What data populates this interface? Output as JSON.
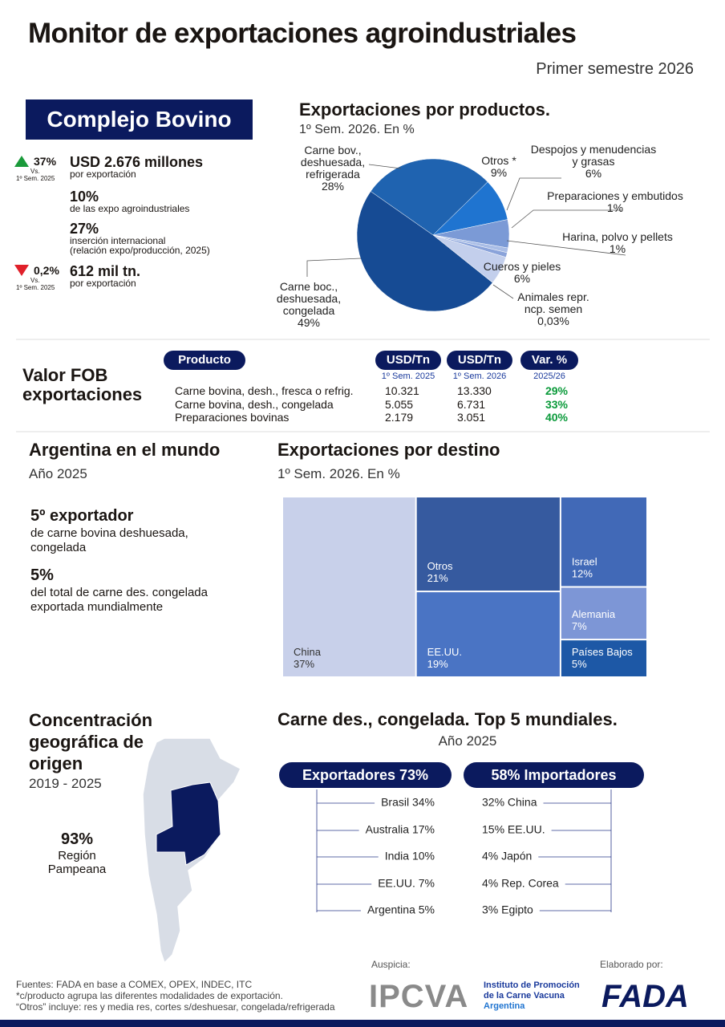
{
  "header": {
    "title": "Monitor de exportaciones agroindustriales",
    "subtitle": "Primer semestre 2026"
  },
  "complejo": {
    "title": "Complejo Bovino",
    "stats": [
      {
        "change": "37%",
        "direction": "up",
        "vs": "Vs.",
        "period": "1º Sem. 2025",
        "value": "USD 2.676 millones",
        "desc": "por exportación"
      },
      {
        "value": "10%",
        "desc": "de las expo agroindustriales"
      },
      {
        "value": "27%",
        "desc": "inserción internacional",
        "desc2": "(relación expo/producción, 2025)"
      },
      {
        "change": "0,2%",
        "direction": "down",
        "vs": "Vs.",
        "period": "1º Sem. 2025",
        "value": "612 mil tn.",
        "desc": "por exportación"
      }
    ]
  },
  "chart_data": [
    {
      "type": "pie",
      "title": "Exportaciones por productos.",
      "subtitle": "1º Sem. 2026. En %",
      "categories": [
        "Carne bov., deshuesada, refrigerada",
        "Otros *",
        "Despojos y menudencias y grasas",
        "Preparaciones y embutidos",
        "Harina, polvo y pellets",
        "Cueros y pieles",
        "Animales repr. ncp. semen",
        "Carne boc., deshuesada, congelada"
      ],
      "values": [
        28,
        9,
        6,
        1,
        1,
        6,
        0.03,
        49
      ],
      "value_labels": [
        "28%",
        "9%",
        "6%",
        "1%",
        "1%",
        "6%",
        "0,03%",
        "49%"
      ],
      "colors": [
        "#1f63b0",
        "#1f74d0",
        "#7b9ad6",
        "#a9bde6",
        "#8aa3da",
        "#c3cfec",
        "#d8e0f3",
        "#164b94"
      ]
    },
    {
      "type": "treemap",
      "title": "Exportaciones por destino",
      "subtitle": "1º Sem. 2026. En %",
      "categories": [
        "China",
        "Otros",
        "Israel",
        "Alemania",
        "EE.UU.",
        "Países Bajos"
      ],
      "values": [
        37,
        21,
        12,
        7,
        19,
        5
      ],
      "value_labels": [
        "37%",
        "21%",
        "12%",
        "7%",
        "19%",
        "5%"
      ],
      "colors": [
        "#c8d0ea",
        "#365a9f",
        "#4169b7",
        "#7d96d6",
        "#4a74c4",
        "#1d58a6"
      ]
    }
  ],
  "fob": {
    "title": "Valor FOB exportaciones",
    "headers": [
      "Producto",
      "USD/Tn",
      "USD/Tn",
      "Var. %"
    ],
    "subheaders": [
      "1º Sem. 2025",
      "1º Sem. 2026",
      "2025/26"
    ],
    "rows": [
      [
        "Carne bovina, desh., fresca o refrig.",
        "10.321",
        "13.330",
        "29%"
      ],
      [
        "Carne bovina, desh., congelada",
        "5.055",
        "6.731",
        "33%"
      ],
      [
        "Preparaciones bovinas",
        "2.179",
        "3.051",
        "40%"
      ]
    ]
  },
  "mundo": {
    "title": "Argentina en el mundo",
    "subtitle": "Año 2025",
    "facts": [
      {
        "value": "5º exportador",
        "desc": "de carne bovina deshuesada, congelada"
      },
      {
        "value": "5%",
        "desc": "del total de carne des. congelada exportada mundialmente"
      }
    ]
  },
  "origen": {
    "title": "Concentración geográfica de origen",
    "period": "2019 - 2025",
    "value": "93%",
    "label": "Región Pampeana"
  },
  "top5": {
    "title": "Carne des., congelada. Top 5 mundiales.",
    "subtitle": "Año 2025",
    "exporters_title": "Exportadores 73%",
    "importers_title": "58% Importadores",
    "exporters": [
      "Brasil 34%",
      "Australia 17%",
      "India 10%",
      "EE.UU. 7%",
      "Argentina 5%"
    ],
    "importers": [
      "32% China",
      "15% EE.UU.",
      "4% Japón",
      "4% Rep. Corea",
      "3% Egipto"
    ]
  },
  "footer": {
    "sources": [
      "Fuentes: FADA en base a COMEX, OPEX, INDEC, ITC",
      "*c/producto agrupa las diferentes modalidades de exportación.",
      "“Otros” incluye: res y media res, cortes s/deshuesar, congelada/refrigerada"
    ],
    "sponsor_label": "Auspicia:",
    "sponsor": "IPCVA",
    "sponsor_name": "Instituto de Promoción de la Carne Vacuna",
    "sponsor_country": "Argentina",
    "author_label": "Elaborado por:",
    "author": "FADA"
  }
}
